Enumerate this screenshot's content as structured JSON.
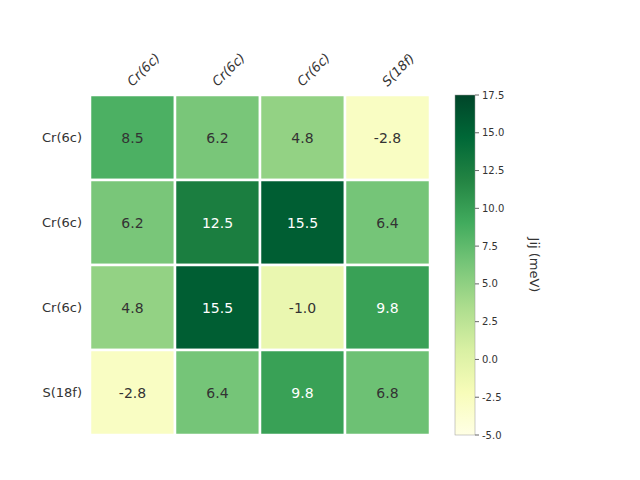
{
  "chart_data": {
    "type": "heatmap",
    "row_labels": [
      "Cr(6c)",
      "Cr(6c)",
      "Cr(6c)",
      "S(18f)"
    ],
    "col_labels": [
      "Cr(6c)",
      "Cr(6c)",
      "Cr(6c)",
      "S(18f)"
    ],
    "values": [
      [
        8.5,
        6.2,
        4.8,
        -2.8
      ],
      [
        6.2,
        12.5,
        15.5,
        6.4
      ],
      [
        4.8,
        15.5,
        -1.0,
        9.8
      ],
      [
        -2.8,
        6.4,
        9.8,
        6.8
      ]
    ],
    "value_labels": [
      [
        "8.5",
        "6.2",
        "4.8",
        "-2.8"
      ],
      [
        "6.2",
        "12.5",
        "15.5",
        "6.4"
      ],
      [
        "4.8",
        "15.5",
        "-1.0",
        "9.8"
      ],
      [
        "-2.8",
        "6.4",
        "9.8",
        "6.8"
      ]
    ],
    "data_labels": true,
    "colorbar": {
      "label": "Jij (meV)",
      "range": [
        -5.0,
        17.5
      ],
      "ticks": [
        {
          "value": -5.0,
          "label": "-5.0"
        },
        -2.5,
        {
          "value": 0.0,
          "label": "0.0"
        },
        2.5,
        {
          "value": 5.0,
          "label": "5.0"
        },
        7.5,
        {
          "value": 10.0,
          "label": "10.0"
        },
        12.5,
        {
          "value": 15.0,
          "label": "15.0"
        },
        17.5
      ]
    }
  }
}
